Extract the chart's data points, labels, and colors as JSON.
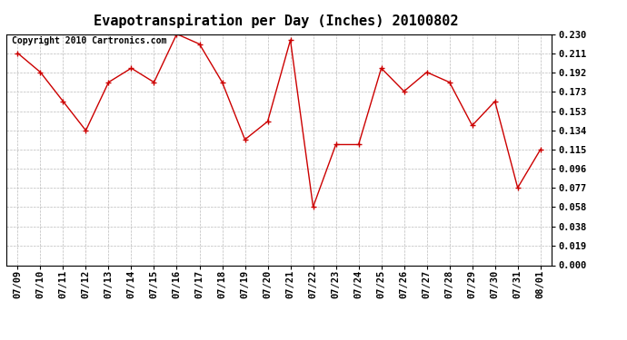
{
  "title": "Evapotranspiration per Day (Inches) 20100802",
  "copyright": "Copyright 2010 Cartronics.com",
  "x_labels": [
    "07/09",
    "07/10",
    "07/11",
    "07/12",
    "07/13",
    "07/14",
    "07/15",
    "07/16",
    "07/17",
    "07/18",
    "07/19",
    "07/20",
    "07/21",
    "07/22",
    "07/23",
    "07/24",
    "07/25",
    "07/26",
    "07/27",
    "07/28",
    "07/29",
    "07/30",
    "07/31",
    "08/01"
  ],
  "y_values": [
    0.211,
    0.192,
    0.163,
    0.134,
    0.182,
    0.196,
    0.182,
    0.23,
    0.22,
    0.182,
    0.125,
    0.143,
    0.224,
    0.058,
    0.12,
    0.12,
    0.196,
    0.173,
    0.192,
    0.182,
    0.139,
    0.163,
    0.077,
    0.115
  ],
  "y_ticks": [
    0.0,
    0.019,
    0.038,
    0.058,
    0.077,
    0.096,
    0.115,
    0.134,
    0.153,
    0.173,
    0.192,
    0.211,
    0.23
  ],
  "line_color": "#cc0000",
  "marker": "+",
  "marker_color": "#cc0000",
  "bg_color": "#ffffff",
  "grid_color": "#bbbbbb",
  "ylim": [
    0.0,
    0.23
  ],
  "title_fontsize": 11,
  "copyright_fontsize": 7,
  "tick_fontsize": 7.5
}
